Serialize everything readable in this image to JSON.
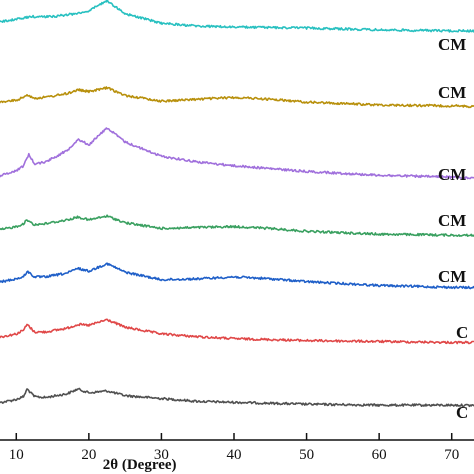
{
  "chart_data": {
    "type": "line",
    "title": "",
    "xlabel": "2θ (Degree)",
    "ylabel": "",
    "xlim": [
      5,
      75
    ],
    "x_ticks": [
      10,
      20,
      30,
      40,
      50,
      60,
      70
    ],
    "x_tick_labels": [
      "10",
      "20",
      "30",
      "40",
      "50",
      "60",
      "70"
    ],
    "y_ticks_shown": false,
    "grid": false,
    "stacked_offset": true,
    "series": [
      {
        "name": "C",
        "color": "#505050",
        "offset": 0,
        "x": [
          5,
          8,
          10,
          11,
          11.5,
          12.5,
          14,
          17,
          18.5,
          20,
          22.5,
          25,
          30,
          35,
          40,
          50,
          60,
          70,
          75
        ],
        "y": [
          2,
          6,
          9,
          12,
          20,
          12,
          11,
          15,
          20,
          16,
          18,
          13,
          10,
          7,
          6,
          4,
          3,
          3,
          2.5
        ]
      },
      {
        "name": "C",
        "color": "#e04848",
        "offset": 68,
        "x": [
          5,
          8,
          10,
          11,
          11.5,
          12.5,
          14,
          17,
          18.5,
          20,
          22.5,
          25,
          30,
          35,
          40,
          50,
          60,
          70,
          75
        ],
        "y": [
          2,
          7,
          10,
          14,
          20,
          12,
          12,
          16,
          20,
          19,
          25,
          17,
          10,
          7,
          5,
          3,
          2,
          1,
          1
        ]
      },
      {
        "name": "CM",
        "color": "#1f5fc8",
        "offset": 125,
        "x": [
          5,
          8,
          10,
          11,
          11.5,
          12.5,
          14,
          17,
          18.5,
          20,
          22.5,
          25,
          30,
          35,
          40,
          45,
          50,
          60,
          70,
          75
        ],
        "y": [
          3,
          8,
          11,
          13,
          19,
          13,
          13,
          17,
          22,
          19,
          27,
          18,
          10,
          11,
          13,
          11,
          8,
          4,
          2,
          1.5
        ]
      },
      {
        "name": "CM",
        "color": "#3aa060",
        "offset": 180,
        "x": [
          5,
          8,
          10,
          11,
          11.5,
          12.5,
          14,
          17,
          18.5,
          20,
          22.5,
          25,
          30,
          35,
          40,
          45,
          50,
          60,
          70,
          75
        ],
        "y": [
          3,
          8,
          11,
          14,
          18,
          13,
          14,
          18,
          21,
          18,
          22,
          15,
          9,
          10,
          11,
          9,
          6,
          3,
          2,
          1.5
        ]
      },
      {
        "name": "CM",
        "color": "#a070dc",
        "offset": 235,
        "x": [
          5,
          8,
          10,
          11,
          11.7,
          12.5,
          14,
          17,
          18.5,
          20,
          22.5,
          25,
          30,
          35,
          40,
          50,
          60,
          70,
          75
        ],
        "y": [
          5,
          10,
          15,
          20,
          32,
          22,
          24,
          36,
          48,
          42,
          60,
          45,
          30,
          24,
          20,
          14,
          10,
          8,
          7
        ]
      },
      {
        "name": "CM",
        "color": "#b8900c",
        "offset": 315,
        "x": [
          5,
          8,
          10,
          11,
          11.5,
          12.5,
          14,
          17,
          18.5,
          20,
          22.5,
          25,
          30,
          35,
          40,
          45,
          50,
          60,
          70,
          75
        ],
        "y": [
          2,
          7,
          9,
          12,
          15,
          11,
          12,
          16,
          20,
          18,
          22,
          14,
          8,
          10,
          12,
          10,
          7,
          4,
          3,
          2
        ]
      },
      {
        "name": "CM",
        "color": "#28c0c0",
        "offset": 395,
        "x": [
          5,
          8,
          10,
          12,
          15,
          18,
          20,
          22.5,
          25,
          30,
          35,
          40,
          50,
          60,
          70,
          75
        ],
        "y": [
          6,
          12,
          14,
          17,
          17,
          20,
          23,
          34,
          20,
          10,
          7,
          6,
          5,
          3,
          2,
          2
        ]
      }
    ]
  }
}
